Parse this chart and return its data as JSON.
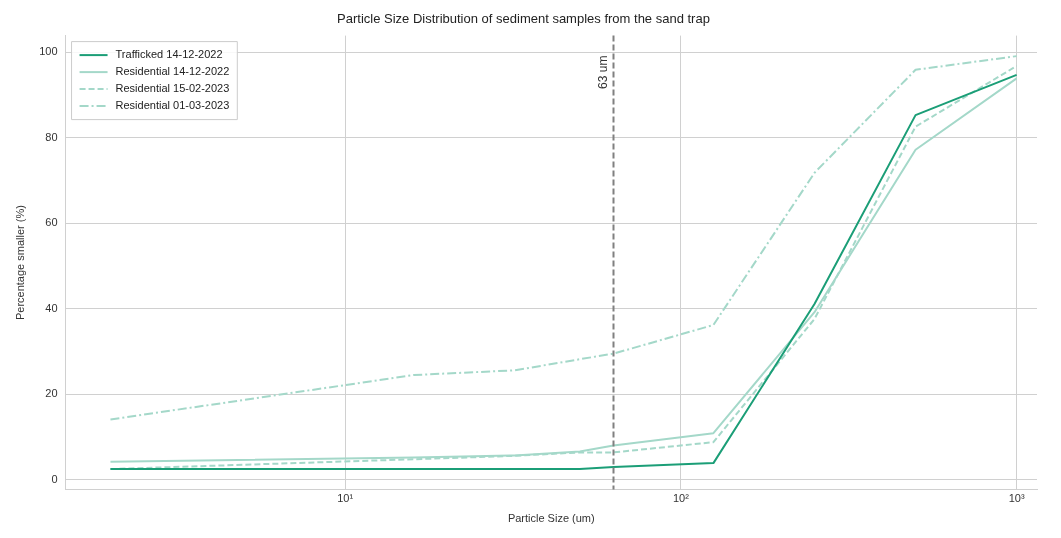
{
  "chart_data": {
    "type": "line",
    "title": "Particle Size Distribution of sediment samples from the sand trap",
    "xlabel": "Particle Size (um)",
    "ylabel": "Percentage smaller (%)",
    "x": [
      2,
      16,
      32,
      50,
      63,
      125,
      250,
      500,
      1000
    ],
    "series": [
      {
        "name": "Trafficked 14-12-2022",
        "color": "#1b9e77",
        "line_style": "solid",
        "values": [
          2.5,
          2.5,
          2.5,
          2.5,
          3.0,
          3.9,
          41.1,
          85.3,
          94.7
        ]
      },
      {
        "name": "Residential 14-12-2022",
        "color": "#a4d8c9",
        "line_style": "solid",
        "values": [
          4.2,
          5.2,
          5.7,
          6.6,
          8.0,
          10.9,
          39.2,
          77.2,
          93.9
        ]
      },
      {
        "name": "Residential 15-02-2023",
        "color": "#a4d8c9",
        "line_style": "dashed",
        "values": [
          2.5,
          4.8,
          5.6,
          6.4,
          6.4,
          8.8,
          37.6,
          82.6,
          96.8
        ]
      },
      {
        "name": "Residential 01-03-2023",
        "color": "#a4d8c9",
        "line_style": "dashdot",
        "values": [
          14.1,
          24.5,
          25.6,
          28.2,
          29.5,
          36.2,
          71.8,
          95.9,
          99.1
        ]
      }
    ],
    "log": "x",
    "xlim": [
      1.47,
      1150
    ],
    "xticks": [
      {
        "value": 10,
        "label": "10¹"
      },
      {
        "value": 100,
        "label": "10²"
      },
      {
        "value": 1000,
        "label": "10³"
      }
    ],
    "ylim": [
      -2.3,
      103.9
    ],
    "yticks": [
      0,
      20,
      40,
      60,
      80,
      100
    ],
    "ref_lines": [
      {
        "axis": "x",
        "value": 63,
        "label": "63 um",
        "color": "#808080",
        "line_style": "dashed"
      }
    ],
    "grid": true,
    "legend": "top left",
    "marker": "none"
  }
}
